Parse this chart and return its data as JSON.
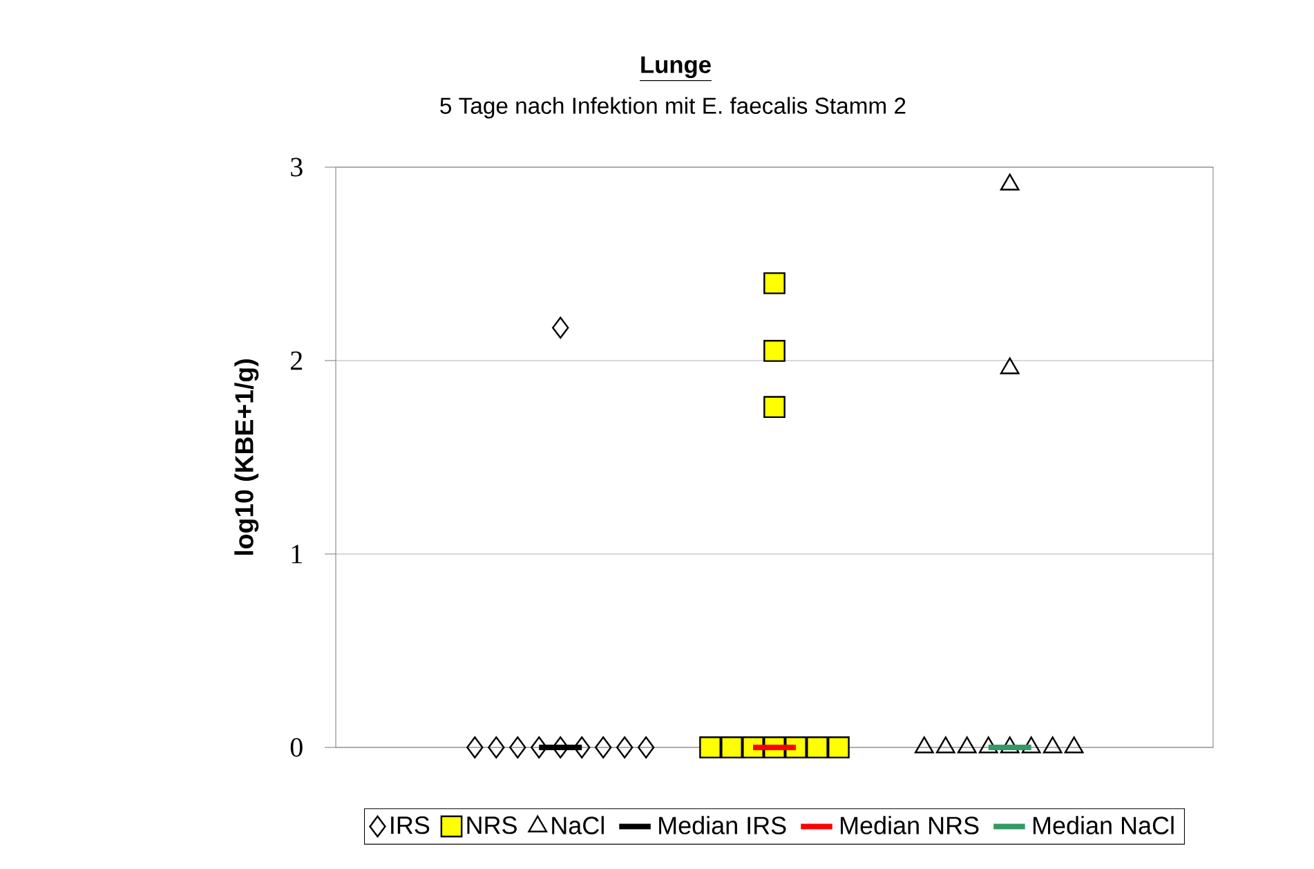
{
  "chart_data": {
    "type": "scatter",
    "title": "Lunge",
    "subtitle": "5 Tage nach Infektion mit E. faecalis Stamm 2",
    "ylabel": "log10 (KBE+1/g)",
    "categories": [
      null,
      null,
      null,
      null,
      null,
      null,
      null,
      null,
      null,
      null,
      null,
      null,
      null,
      null,
      null,
      null,
      null,
      null,
      null,
      null,
      null,
      null,
      null,
      null,
      null,
      null,
      null,
      null,
      null,
      null,
      null,
      null,
      null,
      null,
      null,
      null,
      null,
      null,
      null,
      null,
      null
    ],
    "ylim": [
      0,
      3
    ],
    "yticks": [
      0,
      1,
      2,
      3
    ],
    "grid": "y",
    "legend": "bottom",
    "tick_labels": "y",
    "series": [
      {
        "name": "IRS",
        "marker": "diamond",
        "color": "#000000",
        "values": [
          null,
          null,
          null,
          null,
          null,
          null,
          0,
          0,
          0,
          0,
          0,
          0,
          0,
          0,
          0,
          null,
          null,
          null,
          null,
          null,
          null,
          null,
          null,
          null,
          null,
          null,
          null,
          null,
          null,
          null,
          null,
          null,
          null,
          null,
          null,
          null,
          null,
          null,
          null,
          null,
          null
        ]
      },
      {
        "name": "NRS",
        "marker": "square",
        "color": "#ffff00",
        "values": [
          null,
          null,
          null,
          null,
          null,
          null,
          null,
          null,
          null,
          null,
          null,
          null,
          null,
          null,
          null,
          null,
          null,
          0,
          0,
          0,
          0,
          0,
          0,
          0,
          null,
          null,
          null,
          null,
          null,
          null,
          null,
          null,
          null,
          null,
          null,
          null,
          null,
          null,
          null,
          null,
          null
        ]
      },
      {
        "name": "NaCl",
        "marker": "triangle",
        "color": "#000000",
        "values": [
          null,
          null,
          null,
          null,
          null,
          null,
          null,
          null,
          null,
          null,
          null,
          null,
          null,
          null,
          null,
          null,
          null,
          null,
          null,
          null,
          null,
          null,
          null,
          null,
          null,
          null,
          null,
          0,
          0,
          0,
          0,
          0,
          0,
          0,
          0,
          null,
          null,
          null,
          null,
          null,
          null
        ]
      },
      {
        "name": "Median IRS",
        "type": "line",
        "color": "#000000",
        "values": [
          null,
          null,
          null,
          null,
          null,
          null,
          null,
          null,
          null,
          0,
          0,
          0,
          null,
          null,
          null,
          null,
          null,
          null,
          null,
          null,
          null,
          null,
          null,
          null,
          null,
          null,
          null,
          null,
          null,
          null,
          null,
          null,
          null,
          null,
          null,
          null,
          null,
          null,
          null,
          null,
          null
        ]
      },
      {
        "name": "Median NRS",
        "type": "line",
        "color": "#ff0000",
        "values": [
          null,
          null,
          null,
          null,
          null,
          null,
          null,
          null,
          null,
          null,
          null,
          null,
          null,
          null,
          null,
          null,
          null,
          null,
          null,
          0,
          0,
          0,
          null,
          null,
          null,
          null,
          null,
          null,
          null,
          null,
          null,
          null,
          null,
          null,
          null,
          null,
          null,
          null,
          null,
          null,
          null
        ]
      },
      {
        "name": "Median NaCl",
        "type": "line",
        "color": "#339966",
        "values": [
          null,
          null,
          null,
          null,
          null,
          null,
          null,
          null,
          null,
          null,
          null,
          null,
          null,
          null,
          null,
          null,
          null,
          null,
          null,
          null,
          null,
          null,
          null,
          null,
          null,
          null,
          null,
          null,
          null,
          null,
          0,
          0,
          0,
          null,
          null,
          null,
          null,
          null,
          null,
          null,
          null
        ]
      },
      {
        "marker": "diamond",
        "color": "#000000",
        "values": [
          null,
          null,
          null,
          null,
          null,
          null,
          null,
          null,
          null,
          null,
          2.17,
          null,
          null,
          null,
          null,
          null,
          null,
          null,
          null,
          null,
          null,
          null,
          null,
          null,
          null,
          null,
          null,
          null,
          null,
          null,
          null,
          null,
          null,
          null,
          null,
          null,
          null,
          null,
          null,
          null,
          null
        ]
      },
      {
        "marker": "square",
        "color": "#ffff00",
        "values": [
          null,
          null,
          null,
          null,
          null,
          null,
          null,
          null,
          null,
          null,
          null,
          null,
          null,
          null,
          null,
          null,
          null,
          null,
          null,
          null,
          2.4,
          null,
          null,
          null,
          null,
          null,
          null,
          null,
          null,
          null,
          null,
          null,
          null,
          null,
          null,
          null,
          null,
          null,
          null,
          null,
          null
        ]
      },
      {
        "marker": "square",
        "color": "#ffff00",
        "values": [
          null,
          null,
          null,
          null,
          null,
          null,
          null,
          null,
          null,
          null,
          null,
          null,
          null,
          null,
          null,
          null,
          null,
          null,
          null,
          null,
          2.05,
          null,
          null,
          null,
          null,
          null,
          null,
          null,
          null,
          null,
          null,
          null,
          null,
          null,
          null,
          null,
          null,
          null,
          null,
          null,
          null
        ]
      },
      {
        "marker": "square",
        "color": "#ffff00",
        "values": [
          null,
          null,
          null,
          null,
          null,
          null,
          null,
          null,
          null,
          null,
          null,
          null,
          null,
          null,
          null,
          null,
          null,
          null,
          null,
          null,
          1.76,
          null,
          null,
          null,
          null,
          null,
          null,
          null,
          null,
          null,
          null,
          null,
          null,
          null,
          null,
          null,
          null,
          null,
          null,
          null,
          null
        ]
      },
      {
        "marker": "triangle",
        "color": "#000000",
        "values": [
          null,
          null,
          null,
          null,
          null,
          null,
          null,
          null,
          null,
          null,
          null,
          null,
          null,
          null,
          null,
          null,
          null,
          null,
          null,
          null,
          null,
          null,
          null,
          null,
          null,
          null,
          null,
          null,
          null,
          null,
          null,
          2.91,
          null,
          null,
          null,
          null,
          null,
          null,
          null,
          null,
          null
        ]
      },
      {
        "marker": "triangle",
        "color": "#000000",
        "values": [
          null,
          null,
          null,
          null,
          null,
          null,
          null,
          null,
          null,
          null,
          null,
          null,
          null,
          null,
          null,
          null,
          null,
          null,
          null,
          null,
          null,
          null,
          null,
          null,
          null,
          null,
          null,
          null,
          null,
          null,
          null,
          1.96,
          null,
          null,
          null,
          null,
          null,
          null,
          null,
          null,
          null
        ]
      }
    ]
  }
}
